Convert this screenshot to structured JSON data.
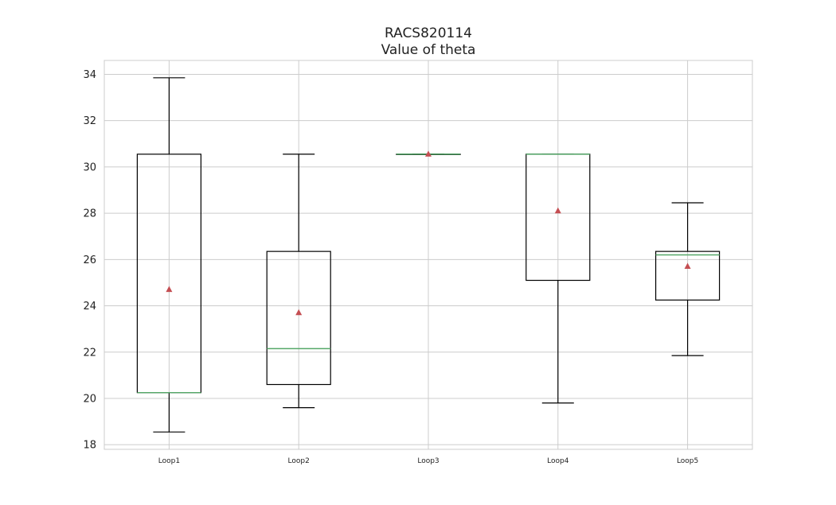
{
  "chart_data": {
    "type": "box",
    "title": "RACS820114",
    "subtitle": "Value of theta",
    "xlabel": "",
    "ylabel": "",
    "categories": [
      "Loop1",
      "Loop2",
      "Loop3",
      "Loop4",
      "Loop5"
    ],
    "ylim": [
      17.8,
      34.6
    ],
    "yticks": [
      18,
      20,
      22,
      24,
      26,
      28,
      30,
      32,
      34
    ],
    "grid": true,
    "boxes": [
      {
        "label": "Loop1",
        "whislo": 18.55,
        "q1": 20.25,
        "median": 20.25,
        "q3": 30.55,
        "whishi": 33.85,
        "mean": 24.7
      },
      {
        "label": "Loop2",
        "whislo": 19.6,
        "q1": 20.6,
        "median": 22.15,
        "q3": 26.35,
        "whishi": 30.55,
        "mean": 23.7
      },
      {
        "label": "Loop3",
        "whislo": 30.55,
        "q1": 30.55,
        "median": 30.55,
        "q3": 30.55,
        "whishi": 30.55,
        "mean": 30.55
      },
      {
        "label": "Loop4",
        "whislo": 19.8,
        "q1": 25.1,
        "median": 30.55,
        "q3": 30.55,
        "whishi": 30.55,
        "mean": 28.1
      },
      {
        "label": "Loop5",
        "whislo": 21.85,
        "q1": 24.25,
        "median": 26.2,
        "q3": 26.35,
        "whishi": 28.45,
        "mean": 25.7
      }
    ],
    "colors": {
      "box": "#000000",
      "median": "#55a868",
      "mean": "#c44e52",
      "grid": "#cccccc",
      "frame": "#cccccc"
    }
  }
}
